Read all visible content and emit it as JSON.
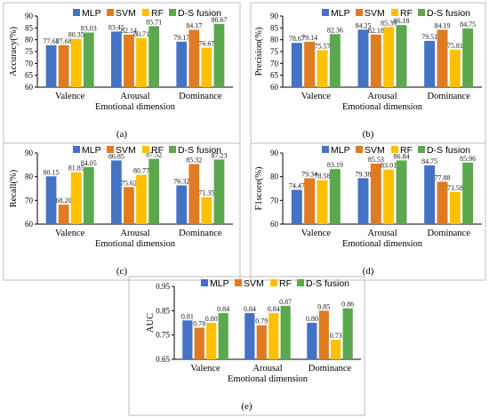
{
  "legend": [
    "MLP",
    "SVM",
    "RF",
    "D-S fusion"
  ],
  "colors": {
    "MLP": "#4472c4",
    "SVM": "#e07b22",
    "RF": "#ffc000",
    "D-S fusion": "#5ba84e"
  },
  "chart_data": [
    {
      "type": "bar",
      "caption": "(a)",
      "ylabel": "Accuracy(%)",
      "xlabel": "Emotional dimension",
      "ylim": [
        60,
        90
      ],
      "yticks": [
        60,
        65,
        70,
        75,
        80,
        85,
        90
      ],
      "categories": [
        "Valence",
        "Arousal",
        "Dominance"
      ],
      "series": [
        {
          "name": "MLP",
          "values": [
            77.68,
            83.45,
            79.17
          ],
          "labels": [
            "77.68",
            "83.45",
            "79.17"
          ]
        },
        {
          "name": "SVM",
          "values": [
            77.68,
            82.14,
            84.17
          ],
          "labels": [
            "77.68",
            "82.14",
            "84.17"
          ]
        },
        {
          "name": "RF",
          "values": [
            80.35,
            80.71,
            76.67
          ],
          "labels": [
            "80.35",
            "80.71",
            "76.67"
          ]
        },
        {
          "name": "D-S fusion",
          "values": [
            83.03,
            85.71,
            86.67
          ],
          "labels": [
            "83.03",
            "85.71",
            "86.67"
          ]
        }
      ]
    },
    {
      "type": "bar",
      "caption": "(b)",
      "ylabel": "Precision(%)",
      "xlabel": "Emotional dimension",
      "ylim": [
        60,
        90
      ],
      "yticks": [
        60,
        65,
        70,
        75,
        80,
        85,
        90
      ],
      "categories": [
        "Valence",
        "Arousal",
        "Dominance"
      ],
      "series": [
        {
          "name": "MLP",
          "values": [
            78.67,
            84.25,
            79.51
          ],
          "labels": [
            "78.67",
            "84.25",
            "79.51"
          ]
        },
        {
          "name": "SVM",
          "values": [
            79.14,
            82.18,
            84.19
          ],
          "labels": [
            "79.14",
            "82.18",
            "84.19"
          ]
        },
        {
          "name": "RF",
          "values": [
            75.57,
            85.39,
            75.81
          ],
          "labels": [
            "75.57",
            "85.39",
            "75.81"
          ]
        },
        {
          "name": "D-S fusion",
          "values": [
            82.36,
            86.18,
            84.75
          ],
          "labels": [
            "82.36",
            "86.18",
            "84.75"
          ]
        }
      ]
    },
    {
      "type": "bar",
      "caption": "(c)",
      "ylabel": "Recall(%)",
      "xlabel": "Emotional dimension",
      "ylim": [
        60,
        90
      ],
      "yticks": [
        60,
        70,
        80,
        90
      ],
      "categories": [
        "Valence",
        "Arousal",
        "Dominance"
      ],
      "series": [
        {
          "name": "MLP",
          "values": [
            80.15,
            86.85,
            76.32
          ],
          "labels": [
            "80.15",
            "86.85",
            "76.32"
          ]
        },
        {
          "name": "SVM",
          "values": [
            68.2,
            75.62,
            85.32
          ],
          "labels": [
            "68.20",
            "75.62",
            "85.32"
          ]
        },
        {
          "name": "RF",
          "values": [
            81.85,
            80.77,
            71.35
          ],
          "labels": [
            "81.85",
            "80.77",
            "71.35"
          ]
        },
        {
          "name": "D-S fusion",
          "values": [
            84.05,
            87.52,
            87.23
          ],
          "labels": [
            "84.05",
            "87.52",
            "87.23"
          ]
        }
      ]
    },
    {
      "type": "bar",
      "caption": "(d)",
      "ylabel": "F1score(%)",
      "xlabel": "Emotional dimension",
      "ylim": [
        60,
        90
      ],
      "yticks": [
        60,
        70,
        80,
        90
      ],
      "categories": [
        "Valence",
        "Arousal",
        "Dominance"
      ],
      "series": [
        {
          "name": "MLP",
          "values": [
            74.47,
            79.38,
            84.75
          ],
          "labels": [
            "74.47",
            "79.38",
            "84.75"
          ]
        },
        {
          "name": "SVM",
          "values": [
            79.34,
            85.53,
            77.88
          ],
          "labels": [
            "79.34",
            "85.53",
            "77.88"
          ]
        },
        {
          "name": "RF",
          "values": [
            78.58,
            83.01,
            73.58
          ],
          "labels": [
            "78.58",
            "83.01",
            "73.58"
          ]
        },
        {
          "name": "D-S fusion",
          "values": [
            83.19,
            86.84,
            85.96
          ],
          "labels": [
            "83.19",
            "86.84",
            "85.96"
          ]
        }
      ]
    },
    {
      "type": "bar",
      "caption": "(e)",
      "ylabel": "AUC",
      "xlabel": "Emotional dimension",
      "ylim": [
        0.65,
        0.95
      ],
      "yticks": [
        "0.65",
        "0.75",
        "0.85",
        "0.95"
      ],
      "categories": [
        "Valence",
        "Arousal",
        "Dominance"
      ],
      "series": [
        {
          "name": "MLP",
          "values": [
            0.81,
            0.84,
            0.8
          ],
          "labels": [
            "0.81",
            "0.84",
            "0.80"
          ]
        },
        {
          "name": "SVM",
          "values": [
            0.78,
            0.79,
            0.85
          ],
          "labels": [
            "0.78",
            "0.79",
            "0.85"
          ]
        },
        {
          "name": "RF",
          "values": [
            0.8,
            0.84,
            0.73
          ],
          "labels": [
            "0.80",
            "0.84",
            "0.73"
          ]
        },
        {
          "name": "D-S fusion",
          "values": [
            0.84,
            0.87,
            0.86
          ],
          "labels": [
            "0.84",
            "0.87",
            "0.86"
          ]
        }
      ]
    }
  ]
}
